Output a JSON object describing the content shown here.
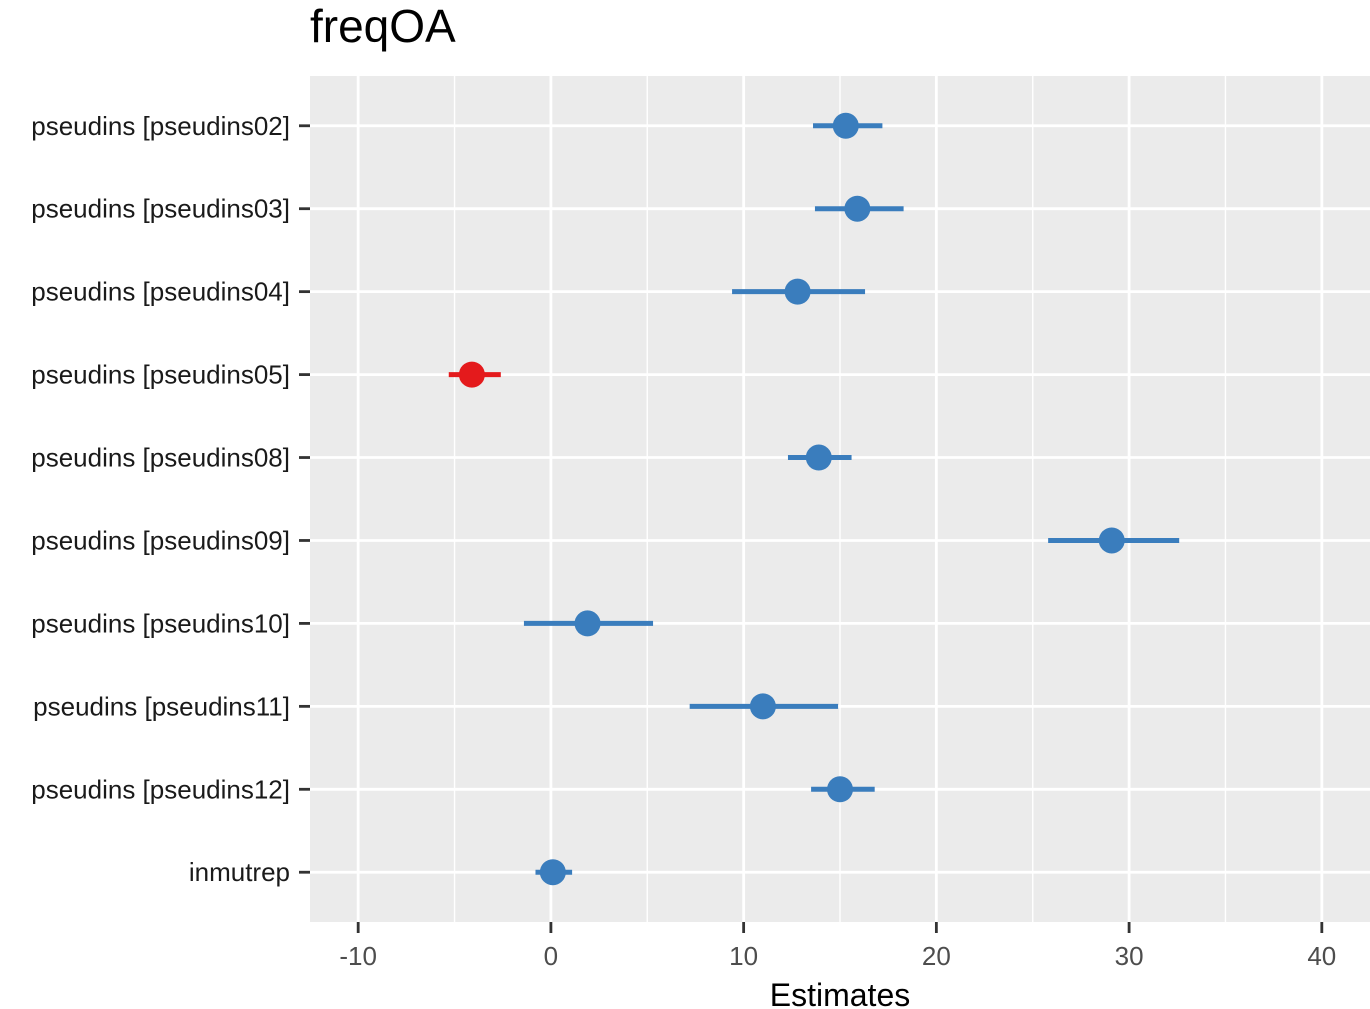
{
  "chart_data": {
    "type": "forest",
    "title": "freqOA",
    "xlabel": "Estimates",
    "ylabel": "",
    "xlim": [
      -12.5,
      42.5
    ],
    "xticks": [
      -10,
      0,
      10,
      20,
      30,
      40
    ],
    "xtick_labels": [
      "-10",
      "0",
      "10",
      "20",
      "30",
      "40"
    ],
    "grid": true,
    "legend": "none",
    "colors": {
      "positive": "#3a7dbd",
      "negative": "#e41a1c",
      "panel": "#ebebeb",
      "grid": "#ffffff"
    },
    "terms": [
      {
        "label": "pseudins [pseudins02]",
        "estimate": 15.3,
        "lower": 13.6,
        "upper": 17.2
      },
      {
        "label": "pseudins [pseudins03]",
        "estimate": 15.9,
        "lower": 13.7,
        "upper": 18.3
      },
      {
        "label": "pseudins [pseudins04]",
        "estimate": 12.8,
        "lower": 9.4,
        "upper": 16.3
      },
      {
        "label": "pseudins [pseudins05]",
        "estimate": -4.1,
        "lower": -5.3,
        "upper": -2.6
      },
      {
        "label": "pseudins [pseudins08]",
        "estimate": 13.9,
        "lower": 12.3,
        "upper": 15.6
      },
      {
        "label": "pseudins [pseudins09]",
        "estimate": 29.1,
        "lower": 25.8,
        "upper": 32.6
      },
      {
        "label": "pseudins [pseudins10]",
        "estimate": 1.9,
        "lower": -1.4,
        "upper": 5.3
      },
      {
        "label": "pseudins [pseudins11]",
        "estimate": 11.0,
        "lower": 7.2,
        "upper": 14.9
      },
      {
        "label": "pseudins [pseudins12]",
        "estimate": 15.0,
        "lower": 13.5,
        "upper": 16.8
      },
      {
        "label": "inmutrep",
        "estimate": 0.1,
        "lower": -0.8,
        "upper": 1.1
      }
    ]
  }
}
